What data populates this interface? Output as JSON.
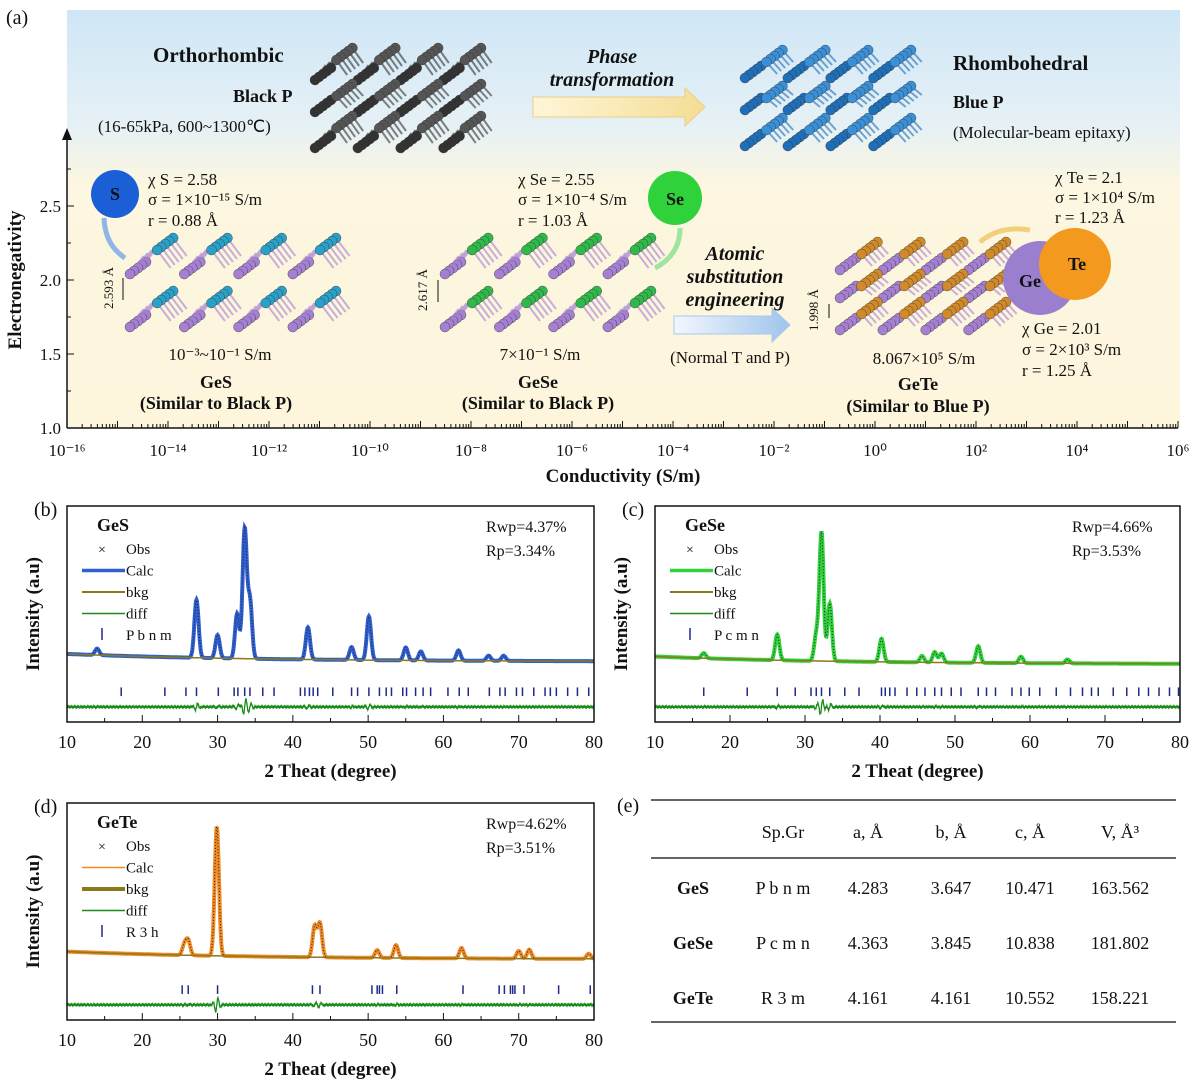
{
  "panel_labels": [
    "(a)",
    "(b)",
    "(c)",
    "(d)",
    "(e)"
  ],
  "chart_data": [
    {
      "type": "scatter",
      "panel": "(a)",
      "xlabel": "Conductivity (S/m)",
      "ylabel": "Electronegativity",
      "x_scale": "log",
      "xlim": [
        1e-16,
        1000000.0
      ],
      "ylim": [
        1.0,
        2.9
      ],
      "xtick_labels": [
        "10⁻¹⁶",
        "10⁻¹⁴",
        "10⁻¹²",
        "10⁻¹⁰",
        "10⁻⁸",
        "10⁻⁶",
        "10⁻⁴",
        "10⁻²",
        "10⁰",
        "10²",
        "10⁴",
        "10⁶"
      ],
      "ytick_labels": [
        "1.0",
        "1.5",
        "2.0",
        "2.5"
      ],
      "top": {
        "left_title": "Orthorhombic",
        "left_sub": "Black P",
        "left_cond": "(16-65kPa, 600~1300℃)",
        "arrow_label": [
          "Phase",
          "transformation"
        ],
        "right_title": "Rhombohedral",
        "right_sub": "Blue P",
        "right_cond": "(Molecular-beam epitaxy)"
      },
      "elements": {
        "S": {
          "symbol": "S",
          "chi": "χ S = 2.58",
          "sigma": "σ = 1×10⁻¹⁵ S/m",
          "r": "r = 0.88 Å",
          "color": "#1a5fd6"
        },
        "Se": {
          "symbol": "Se",
          "chi": "χ Se = 2.55",
          "sigma": "σ = 1×10⁻⁴ S/m",
          "r": "r = 1.03 Å",
          "color": "#2fd23a"
        },
        "Te": {
          "symbol": "Te",
          "chi": "χ Te = 2.1",
          "sigma": "σ = 1×10⁴ S/m",
          "r": "r = 1.23 Å",
          "color": "#f39a1e"
        },
        "Ge": {
          "symbol": "Ge",
          "chi": "χ Ge = 2.01",
          "sigma": "σ = 2×10³ S/m",
          "r": "r = 1.25 Å",
          "color": "#9b7fcf"
        }
      },
      "compounds": [
        {
          "name": "GeS",
          "note": "(Similar to Black P)",
          "conductivity": "10⁻³~10⁻¹ S/m",
          "interlayer": "2.593 Å",
          "color": "#2a9fc8"
        },
        {
          "name": "GeSe",
          "note": "(Similar to Black P)",
          "conductivity": "7×10⁻¹ S/m",
          "interlayer": "2.617 Å",
          "color": "#30b94a"
        },
        {
          "name": "GeTe",
          "note": "(Similar to Blue P)",
          "conductivity": "8.067×10⁵ S/m",
          "interlayer": "1.998 Å",
          "color": "#d08a2a"
        }
      ],
      "substitution": {
        "label": [
          "Atomic",
          "substitution",
          "engineering"
        ],
        "cond": "(Normal T and P)"
      }
    },
    {
      "type": "line",
      "panel": "(b)",
      "title": "GeS",
      "title_color": "#3b6fc4",
      "xlabel": "2 Theat (degree)",
      "ylabel": "Intensity (a.u)",
      "xlim": [
        10,
        80
      ],
      "xtick_labels": [
        "10",
        "20",
        "30",
        "40",
        "50",
        "60",
        "70",
        "80"
      ],
      "rwp": "Rwp=4.37%",
      "rp": "Rp=3.34%",
      "legend": [
        "Obs",
        "Calc",
        "bkg",
        "diff",
        "P b n m"
      ],
      "calc_color": "#2f5fd0",
      "bkg_color": "#8a7a1a",
      "peaks": [
        [
          14,
          0.05
        ],
        [
          27.2,
          0.45
        ],
        [
          30,
          0.18
        ],
        [
          32.6,
          0.35
        ],
        [
          33.6,
          1.0
        ],
        [
          34.3,
          0.45
        ],
        [
          42,
          0.25
        ],
        [
          47.8,
          0.1
        ],
        [
          50.1,
          0.34
        ],
        [
          55,
          0.1
        ],
        [
          57,
          0.07
        ],
        [
          62,
          0.08
        ],
        [
          66,
          0.04
        ],
        [
          68,
          0.04
        ]
      ],
      "reflections": [
        17.2,
        23,
        25.8,
        27.2,
        30.1,
        32.2,
        32.7,
        33.6,
        34.3,
        36,
        37.5,
        41,
        41.6,
        42.2,
        42.7,
        43.3,
        45.3,
        47.8,
        48.6,
        50.1,
        51.5,
        52.4,
        53.1,
        54.6,
        55.1,
        56.3,
        57.3,
        58.3,
        60.6,
        62.1,
        63.3,
        66.1,
        67.5,
        68.2,
        69.7,
        70.5,
        72,
        73.5,
        74.2,
        75,
        76.5,
        77.8,
        79.3
      ]
    },
    {
      "type": "line",
      "panel": "(c)",
      "title": "GeSe",
      "title_color": "#2fd23a",
      "xlabel": "2 Theat (degree)",
      "ylabel": "Intensity (a.u)",
      "xlim": [
        10,
        80
      ],
      "xtick_labels": [
        "10",
        "20",
        "30",
        "40",
        "50",
        "60",
        "70",
        "80"
      ],
      "rwp": "Rwp=4.66%",
      "rp": "Rp=3.53%",
      "legend": [
        "Obs",
        "Calc",
        "bkg",
        "diff",
        "P c m n"
      ],
      "calc_color": "#2fd23a",
      "bkg_color": "#8a7a1a",
      "peaks": [
        [
          16.5,
          0.04
        ],
        [
          26.3,
          0.2
        ],
        [
          31.5,
          0.2
        ],
        [
          32.2,
          1.0
        ],
        [
          33.3,
          0.45
        ],
        [
          40.2,
          0.18
        ],
        [
          45.6,
          0.05
        ],
        [
          47.3,
          0.08
        ],
        [
          48.2,
          0.07
        ],
        [
          53.1,
          0.13
        ],
        [
          58.8,
          0.05
        ],
        [
          65,
          0.03
        ]
      ],
      "reflections": [
        16.5,
        22.3,
        26.3,
        28.7,
        30.8,
        31.5,
        32.2,
        33.3,
        35.3,
        37.2,
        40.2,
        40.7,
        41.3,
        42,
        43.6,
        44.9,
        46,
        47.3,
        48.2,
        49.5,
        50.8,
        53.1,
        54.2,
        55.4,
        57.6,
        58.8,
        59.9,
        61.3,
        63.5,
        65.4,
        67,
        68.2,
        69.1,
        71.1,
        72.9,
        74.5,
        75.8,
        77.2,
        78.6,
        79.8
      ]
    },
    {
      "type": "line",
      "panel": "(d)",
      "title": "GeTe",
      "title_color": "#d06a55",
      "xlabel": "2 Theat (degree)",
      "ylabel": "Intensity (a.u)",
      "xlim": [
        10,
        80
      ],
      "xtick_labels": [
        "10",
        "20",
        "30",
        "40",
        "50",
        "60",
        "70",
        "80"
      ],
      "rwp": "Rwp=4.62%",
      "rp": "Rp=3.51%",
      "legend": [
        "Obs",
        "Calc",
        "bkg",
        "diff",
        "R 3 h"
      ],
      "calc_color": "#8a7a1a",
      "bkg_color": "#f08a25",
      "peaks": [
        [
          25.6,
          0.08
        ],
        [
          26.1,
          0.11
        ],
        [
          29.9,
          1.0
        ],
        [
          42.9,
          0.24
        ],
        [
          43.6,
          0.26
        ],
        [
          51.2,
          0.06
        ],
        [
          53.7,
          0.1
        ],
        [
          62.4,
          0.08
        ],
        [
          70,
          0.06
        ],
        [
          71.4,
          0.07
        ],
        [
          79.3,
          0.04
        ]
      ],
      "reflections": [
        25.3,
        26.1,
        30,
        42.6,
        43.6,
        50.5,
        51.2,
        51.5,
        51.9,
        53.8,
        62.6,
        67.4,
        68.1,
        68.9,
        69.2,
        69.5,
        70.7,
        75.3,
        79.5
      ]
    },
    {
      "type": "table",
      "panel": "(e)",
      "columns": [
        "",
        "Sp.Gr",
        "a, Å",
        "b, Å",
        "c, Å",
        "V, Å³"
      ],
      "rows": [
        [
          "GeS",
          "P b n m",
          "4.283",
          "3.647",
          "10.471",
          "163.562"
        ],
        [
          "GeSe",
          "P c m n",
          "4.363",
          "3.845",
          "10.838",
          "181.802"
        ],
        [
          "GeTe",
          "R 3 m",
          "4.161",
          "4.161",
          "10.552",
          "158.221"
        ]
      ]
    }
  ]
}
